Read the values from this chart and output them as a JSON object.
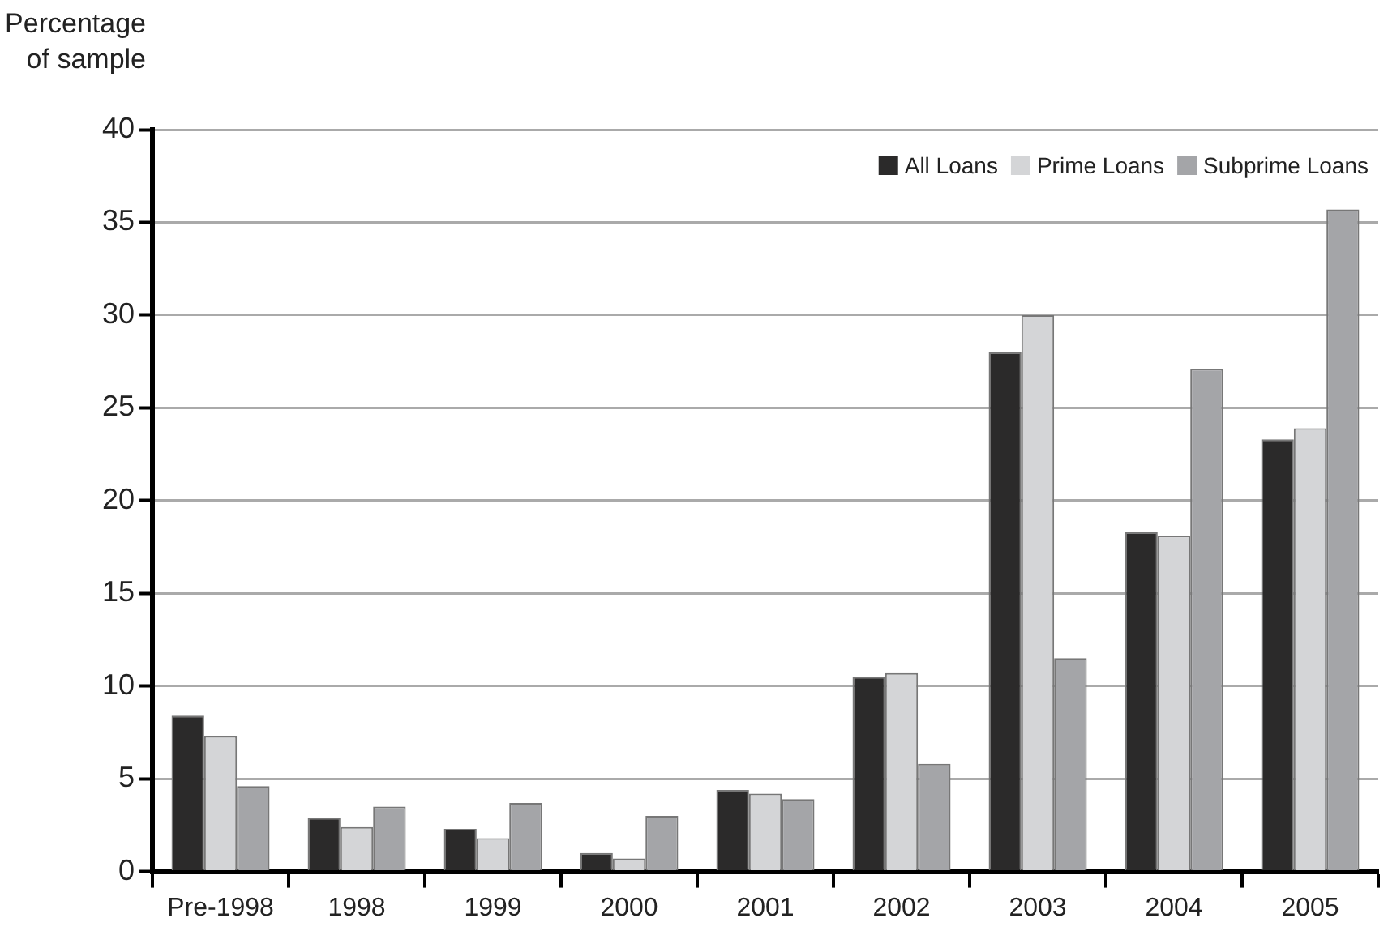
{
  "chart_data": {
    "type": "bar",
    "ylabel": "Percentage of sample",
    "categories": [
      "Pre-1998",
      "1998",
      "1999",
      "2000",
      "2001",
      "2002",
      "2003",
      "2004",
      "2005"
    ],
    "series": [
      {
        "name": "All Loans",
        "color": "#2b2a2a",
        "values": [
          8.4,
          2.9,
          2.3,
          1.0,
          4.4,
          10.5,
          28.0,
          18.3,
          23.3
        ]
      },
      {
        "name": "Prime Loans",
        "color": "#d4d5d7",
        "values": [
          7.3,
          2.4,
          1.8,
          0.7,
          4.2,
          10.7,
          30.0,
          18.1,
          23.9
        ]
      },
      {
        "name": "Subprime Loans",
        "color": "#a4a5a8",
        "values": [
          4.6,
          3.5,
          3.7,
          3.0,
          3.9,
          5.8,
          11.5,
          27.1,
          35.7
        ]
      }
    ],
    "ylim": [
      0,
      40
    ],
    "yticks": [
      0,
      5,
      10,
      15,
      20,
      25,
      30,
      35,
      40
    ],
    "grid": "y",
    "legend": "top right"
  }
}
